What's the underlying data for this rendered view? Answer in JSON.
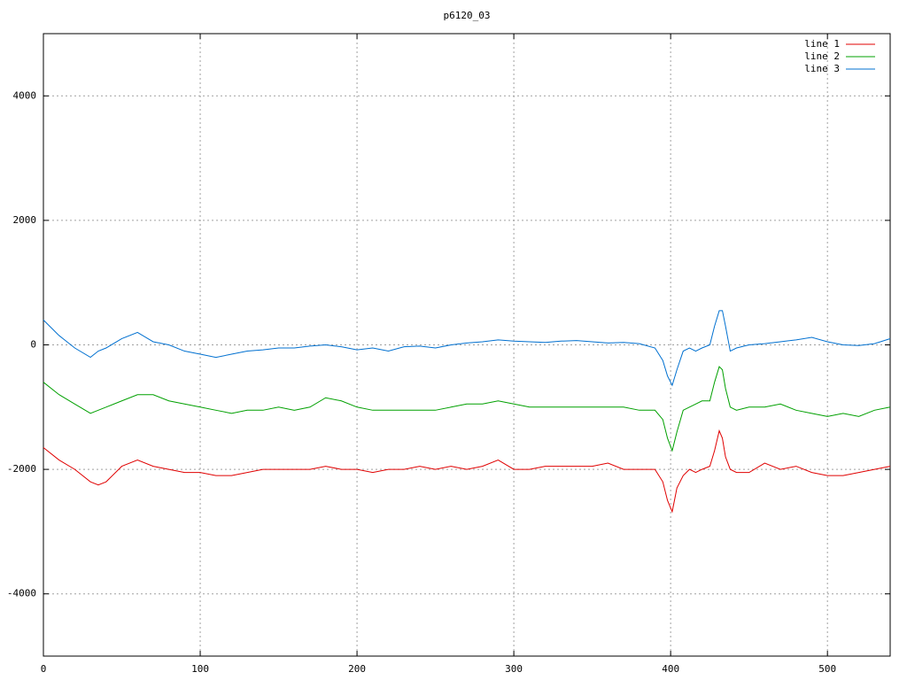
{
  "chart_data": {
    "type": "line",
    "title": "p6120_03",
    "x": [
      0,
      10,
      20,
      30,
      35,
      40,
      50,
      60,
      70,
      80,
      90,
      100,
      110,
      120,
      130,
      140,
      150,
      160,
      170,
      180,
      190,
      200,
      210,
      220,
      230,
      240,
      250,
      260,
      270,
      280,
      290,
      300,
      310,
      320,
      330,
      340,
      350,
      360,
      370,
      380,
      390,
      395,
      398,
      401,
      404,
      408,
      412,
      416,
      420,
      425,
      428,
      431,
      433,
      435,
      438,
      442,
      450,
      460,
      470,
      480,
      490,
      500,
      510,
      520,
      530,
      540
    ],
    "series": [
      {
        "name": "line 1",
        "color": "#e00000",
        "values": [
          -1650,
          -1850,
          -2000,
          -2200,
          -2250,
          -2200,
          -1950,
          -1850,
          -1950,
          -2000,
          -2050,
          -2050,
          -2100,
          -2100,
          -2050,
          -2000,
          -2000,
          -2000,
          -2000,
          -1950,
          -2000,
          -2000,
          -2050,
          -2000,
          -2000,
          -1950,
          -2000,
          -1950,
          -2000,
          -1950,
          -1850,
          -2000,
          -2000,
          -1950,
          -1950,
          -1950,
          -1950,
          -1900,
          -2000,
          -2000,
          -2000,
          -2200,
          -2500,
          -2680,
          -2300,
          -2100,
          -2000,
          -2050,
          -2000,
          -1950,
          -1700,
          -1380,
          -1500,
          -1800,
          -2000,
          -2050,
          -2050,
          -1900,
          -2000,
          -1950,
          -2050,
          -2100,
          -2100,
          -2050,
          -2000,
          -1950
        ]
      },
      {
        "name": "line 2",
        "color": "#00a000",
        "values": [
          -600,
          -800,
          -950,
          -1100,
          -1050,
          -1000,
          -900,
          -800,
          -800,
          -900,
          -950,
          -1000,
          -1050,
          -1100,
          -1050,
          -1050,
          -1000,
          -1050,
          -1000,
          -850,
          -900,
          -1000,
          -1050,
          -1050,
          -1050,
          -1050,
          -1050,
          -1000,
          -950,
          -950,
          -900,
          -950,
          -1000,
          -1000,
          -1000,
          -1000,
          -1000,
          -1000,
          -1000,
          -1050,
          -1050,
          -1200,
          -1500,
          -1700,
          -1400,
          -1050,
          -1000,
          -950,
          -900,
          -900,
          -600,
          -350,
          -400,
          -700,
          -1000,
          -1050,
          -1000,
          -1000,
          -950,
          -1050,
          -1100,
          -1150,
          -1100,
          -1150,
          -1050,
          -1000
        ]
      },
      {
        "name": "line 3",
        "color": "#0070d0",
        "values": [
          400,
          150,
          -50,
          -200,
          -100,
          -50,
          100,
          200,
          50,
          0,
          -100,
          -150,
          -200,
          -150,
          -100,
          -80,
          -50,
          -50,
          -20,
          0,
          -30,
          -80,
          -50,
          -100,
          -30,
          -20,
          -50,
          0,
          30,
          50,
          80,
          60,
          50,
          40,
          60,
          70,
          50,
          30,
          40,
          20,
          -50,
          -250,
          -500,
          -650,
          -400,
          -100,
          -50,
          -100,
          -50,
          0,
          300,
          550,
          550,
          300,
          -100,
          -50,
          0,
          20,
          50,
          80,
          120,
          50,
          0,
          -10,
          20,
          100
        ]
      }
    ],
    "xlim": [
      0,
      540
    ],
    "xticks": [
      0,
      100,
      200,
      300,
      400,
      500
    ],
    "ylim": [
      -5000,
      5000
    ],
    "yticks": [
      -4000,
      -2000,
      0,
      2000,
      4000
    ],
    "grid": true,
    "legend": "top-right"
  }
}
